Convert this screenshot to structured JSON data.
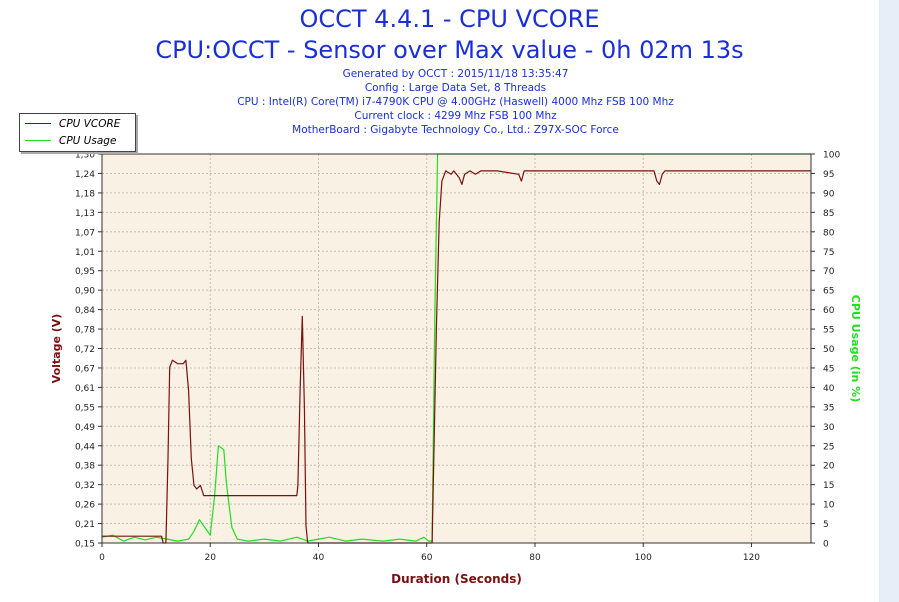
{
  "title": "OCCT 4.4.1 - CPU VCORE",
  "subtitle": "CPU:OCCT - Sensor over Max value - 0h 02m 13s",
  "info_lines": [
    "Generated by OCCT : 2015/11/18 13:35:47",
    "Config : Large Data Set, 8 Threads",
    "CPU : Intel(R) Core(TM) i7-4790K CPU @ 4.00GHz (Haswell) 4000 Mhz FSB 100 Mhz",
    "Current clock : 4299 Mhz FSB 100 Mhz",
    "MotherBoard : Gigabyte Technology Co., Ltd.: Z97X-SOC Force"
  ],
  "colors": {
    "vcore": "#7a1010",
    "usage": "#22dd22",
    "plot_bg": "#f9f1e3",
    "grid": "#c8bfae",
    "title": "#1a2fd6"
  },
  "chart_data": {
    "type": "line",
    "xlabel": "Duration (Seconds)",
    "ylabel_left": "Voltage (V)",
    "ylabel_right": "CPU Usage (in %)",
    "xlim": [
      0,
      131
    ],
    "ylim_left": [
      0.15,
      1.3
    ],
    "ylim_right": [
      0,
      100
    ],
    "x_ticks": [
      "0",
      "20",
      "40",
      "60",
      "80",
      "100",
      "120"
    ],
    "y_left_ticks": [
      "0,15",
      "0,21",
      "0,26",
      "0,32",
      "0,38",
      "0,44",
      "0,49",
      "0,55",
      "0,61",
      "0,67",
      "0,72",
      "0,78",
      "0,84",
      "0,90",
      "0,95",
      "1,01",
      "1,07",
      "1,13",
      "1,18",
      "1,24",
      "1,30"
    ],
    "y_right_ticks": [
      "0",
      "5",
      "10",
      "15",
      "20",
      "25",
      "30",
      "35",
      "40",
      "45",
      "50",
      "55",
      "60",
      "65",
      "70",
      "75",
      "80",
      "85",
      "90",
      "95",
      "100"
    ],
    "grid": true,
    "legend_position": "top-left",
    "series": [
      {
        "name": "CPU VCORE",
        "axis": "left",
        "points": [
          [
            0,
            0.17
          ],
          [
            11,
            0.17
          ],
          [
            11.3,
            0.15
          ],
          [
            11.8,
            0.15
          ],
          [
            12.2,
            0.4
          ],
          [
            12.5,
            0.67
          ],
          [
            13,
            0.69
          ],
          [
            14,
            0.68
          ],
          [
            15,
            0.68
          ],
          [
            15.5,
            0.69
          ],
          [
            16,
            0.6
          ],
          [
            16.5,
            0.4
          ],
          [
            17,
            0.32
          ],
          [
            17.5,
            0.31
          ],
          [
            18.2,
            0.32
          ],
          [
            18.8,
            0.29
          ],
          [
            20,
            0.29
          ],
          [
            30,
            0.29
          ],
          [
            36,
            0.29
          ],
          [
            36.2,
            0.32
          ],
          [
            36.6,
            0.6
          ],
          [
            37,
            0.82
          ],
          [
            37.4,
            0.55
          ],
          [
            37.7,
            0.2
          ],
          [
            38,
            0.15
          ],
          [
            61,
            0.15
          ],
          [
            61.3,
            0.4
          ],
          [
            61.8,
            0.8
          ],
          [
            62.3,
            1.1
          ],
          [
            62.8,
            1.22
          ],
          [
            63.5,
            1.25
          ],
          [
            64.5,
            1.24
          ],
          [
            65,
            1.25
          ],
          [
            66,
            1.23
          ],
          [
            66.5,
            1.21
          ],
          [
            67,
            1.24
          ],
          [
            68,
            1.25
          ],
          [
            69,
            1.24
          ],
          [
            70,
            1.25
          ],
          [
            73,
            1.25
          ],
          [
            77,
            1.24
          ],
          [
            77.5,
            1.22
          ],
          [
            78,
            1.25
          ],
          [
            85,
            1.25
          ],
          [
            102,
            1.25
          ],
          [
            102.5,
            1.22
          ],
          [
            103,
            1.21
          ],
          [
            103.5,
            1.24
          ],
          [
            104,
            1.25
          ],
          [
            131,
            1.25
          ]
        ]
      },
      {
        "name": "CPU Usage",
        "axis": "right",
        "points": [
          [
            0,
            1.5
          ],
          [
            2,
            2
          ],
          [
            4,
            0.5
          ],
          [
            6,
            1.5
          ],
          [
            8,
            0.8
          ],
          [
            10,
            1.5
          ],
          [
            12,
            1
          ],
          [
            14,
            0.5
          ],
          [
            16,
            1
          ],
          [
            17,
            3
          ],
          [
            18,
            6
          ],
          [
            19,
            4
          ],
          [
            20,
            2
          ],
          [
            20.8,
            12
          ],
          [
            21.5,
            25
          ],
          [
            22.5,
            24
          ],
          [
            23,
            15
          ],
          [
            24,
            4
          ],
          [
            25,
            1
          ],
          [
            27,
            0.5
          ],
          [
            30,
            1
          ],
          [
            33,
            0.5
          ],
          [
            36,
            1.5
          ],
          [
            38,
            0.5
          ],
          [
            40,
            1
          ],
          [
            42,
            1.5
          ],
          [
            45,
            0.5
          ],
          [
            48,
            1
          ],
          [
            52,
            0.5
          ],
          [
            55,
            1
          ],
          [
            58,
            0.5
          ],
          [
            59.5,
            1.5
          ],
          [
            60.3,
            0.5
          ],
          [
            61,
            0.5
          ],
          [
            61.5,
            60
          ],
          [
            62,
            100
          ],
          [
            131,
            100
          ]
        ]
      }
    ]
  }
}
